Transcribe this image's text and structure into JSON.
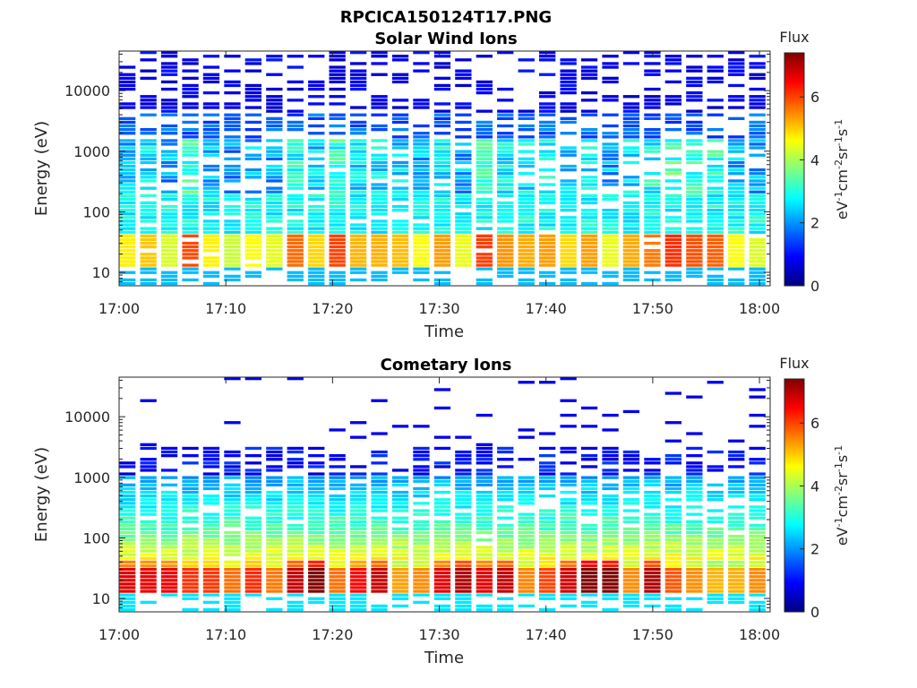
{
  "figure": {
    "title": "RPCICA150124T17.PNG"
  },
  "colormap": [
    "#00007f",
    "#0000ff",
    "#007fff",
    "#00ffff",
    "#7fff7f",
    "#ffff00",
    "#ff7f00",
    "#ff0000",
    "#7f0000"
  ],
  "chart_data": [
    {
      "type": "heatmap",
      "title": "Solar Wind Ions",
      "xlabel": "Time",
      "ylabel": "Energy (eV)",
      "x_ticks": [
        "17:00",
        "17:10",
        "17:20",
        "17:30",
        "17:40",
        "17:50",
        "18:00"
      ],
      "x_range": [
        "17:00",
        "18:01"
      ],
      "y_scale": "log",
      "y_ticks": [
        10,
        100,
        1000,
        10000
      ],
      "y_tick_labels": [
        "10",
        "100",
        "1000",
        "10000"
      ],
      "ylim": [
        6,
        45000
      ],
      "colorbar": {
        "label_top": "Flux",
        "label": "eV-1cm-2sr-1s-1",
        "range": [
          0,
          7.4
        ],
        "ticks": [
          "0",
          "2",
          "4",
          "6"
        ]
      },
      "profile": {
        "low_energy_peak_eV": 25,
        "low_energy_peak_flux": 5.2,
        "mid_energy_band_eV": [
          300,
          1000
        ],
        "mid_energy_flux": 3.2,
        "high_energy_sparse_eV": [
          2000,
          40000
        ],
        "high_energy_flux": 0.8
      }
    },
    {
      "type": "heatmap",
      "title": "Cometary Ions",
      "xlabel": "Time",
      "ylabel": "Energy (eV)",
      "x_ticks": [
        "17:00",
        "17:10",
        "17:20",
        "17:30",
        "17:40",
        "17:50",
        "18:00"
      ],
      "x_range": [
        "17:00",
        "18:01"
      ],
      "y_scale": "log",
      "y_ticks": [
        10,
        100,
        1000,
        10000
      ],
      "y_tick_labels": [
        "10",
        "100",
        "1000",
        "10000"
      ],
      "ylim": [
        6,
        45000
      ],
      "colorbar": {
        "label_top": "Flux",
        "label": "eV-1cm-2sr-1s-1",
        "range": [
          0,
          7.4
        ],
        "ticks": [
          "0",
          "2",
          "4",
          "6"
        ]
      },
      "profile": {
        "low_energy_peak_eV": 25,
        "low_energy_peak_flux": 6.4,
        "band_eV": [
          12,
          120
        ],
        "mid_energy_flux": 3.0,
        "upper_cutoff_eV": 3000,
        "high_energy_flux": 1.0
      }
    }
  ]
}
